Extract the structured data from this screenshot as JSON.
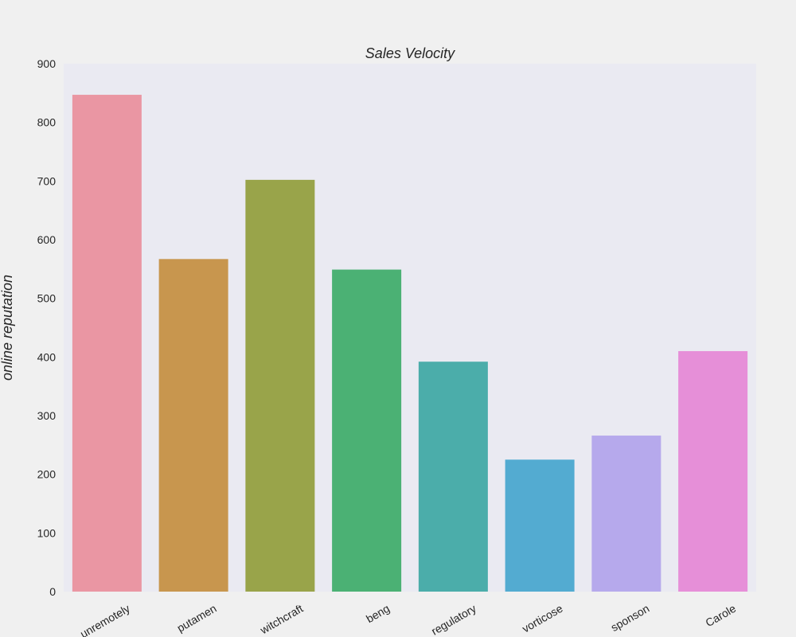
{
  "chart_data": {
    "type": "bar",
    "title": "Sales Velocity",
    "xlabel": "",
    "ylabel": "online reputation",
    "ylim": [
      0,
      900
    ],
    "yticks": [
      0,
      100,
      200,
      300,
      400,
      500,
      600,
      700,
      800,
      900
    ],
    "grid": false,
    "categories": [
      "unremotely",
      "putamen",
      "witchcraft",
      "beng",
      "regulatory",
      "vorticose",
      "sponson",
      "Carole"
    ],
    "values": [
      847,
      567,
      702,
      549,
      392,
      225,
      266,
      410
    ],
    "colors": [
      "#ea96a3",
      "#c8964e",
      "#99a44a",
      "#4bb174",
      "#4badaa",
      "#53abd1",
      "#b6a9ec",
      "#e68fd8"
    ],
    "plot_background": "#eaeaf2"
  }
}
